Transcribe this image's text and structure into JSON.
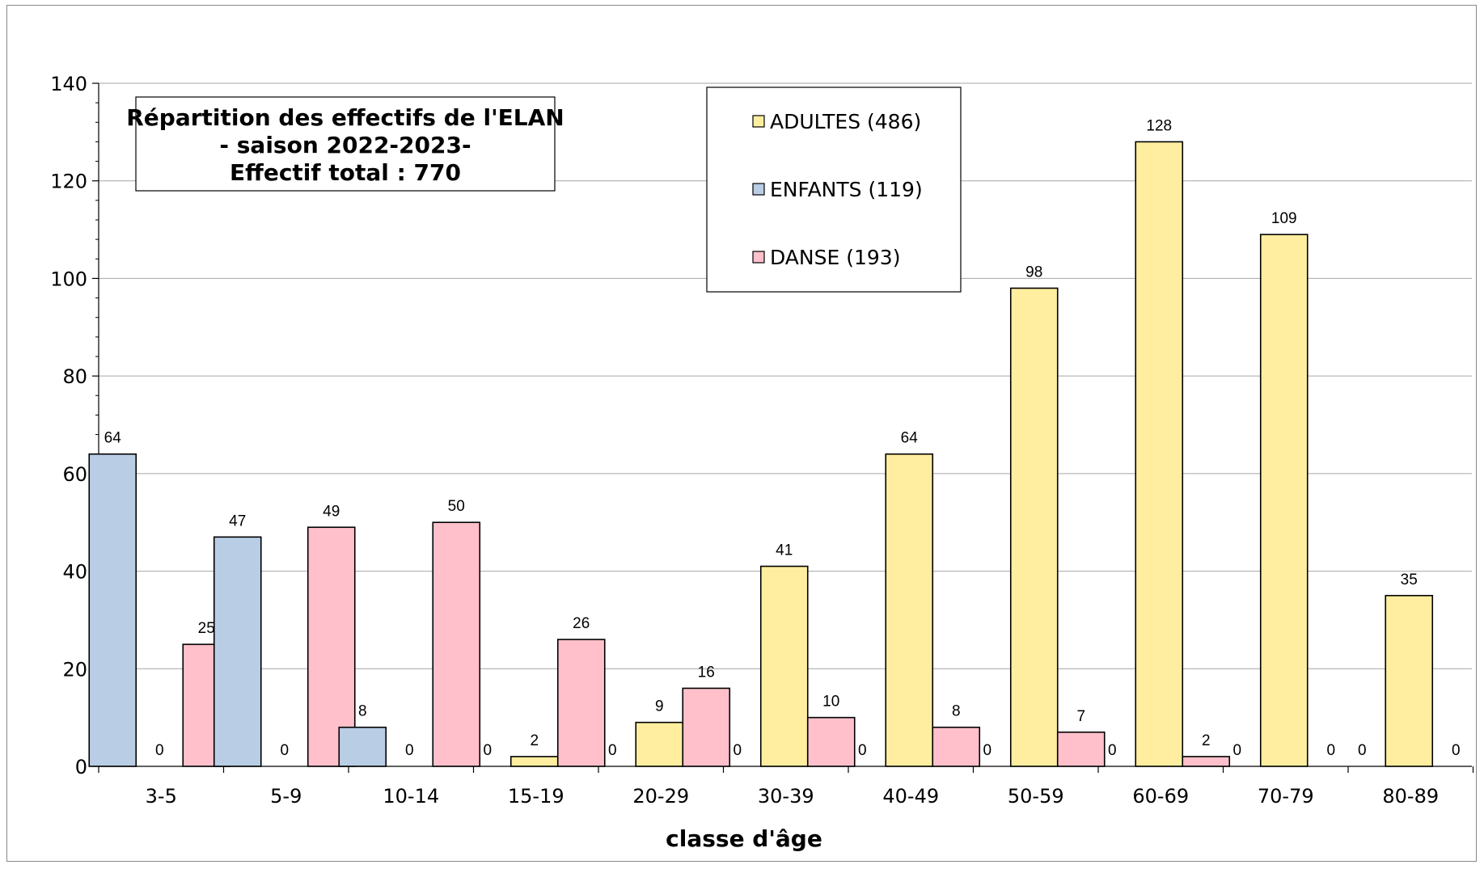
{
  "chart_data": {
    "type": "bar",
    "title_lines": [
      "Répartition des effectifs de l'ELAN",
      "- saison 2022-2023-",
      "Effectif total : 770"
    ],
    "xlabel": "classe d'âge",
    "ylabel": "",
    "ylim": [
      0,
      140
    ],
    "yticks": [
      0,
      20,
      40,
      60,
      80,
      100,
      120,
      140
    ],
    "grid": true,
    "legend_position": "top-center",
    "categories": [
      "3-5",
      "5-9",
      "10-14",
      "15-19",
      "20-29",
      "30-39",
      "40-49",
      "50-59",
      "60-69",
      "70-79",
      "80-89"
    ],
    "series": [
      {
        "name": "ADULTES (486)",
        "color": "#FFEEA0",
        "values": [
          0,
          0,
          0,
          2,
          9,
          41,
          64,
          98,
          128,
          109,
          35
        ]
      },
      {
        "name": "ENFANTS (119)",
        "color": "#B9CDE5",
        "values": [
          64,
          47,
          8,
          0,
          0,
          0,
          0,
          0,
          0,
          0,
          0
        ]
      },
      {
        "name": "DANSE (193)",
        "color": "#FFC0CB",
        "values": [
          25,
          49,
          50,
          26,
          16,
          10,
          8,
          7,
          2,
          0,
          0
        ]
      }
    ]
  }
}
